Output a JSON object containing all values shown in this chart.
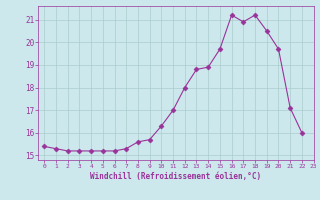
{
  "x": [
    0,
    1,
    2,
    3,
    4,
    5,
    6,
    7,
    8,
    9,
    10,
    11,
    12,
    13,
    14,
    15,
    16,
    17,
    18,
    19,
    20,
    21,
    22,
    23
  ],
  "y": [
    15.4,
    15.3,
    15.2,
    15.2,
    15.2,
    15.2,
    15.2,
    15.3,
    15.6,
    15.7,
    16.3,
    17.0,
    18.0,
    18.8,
    18.9,
    19.7,
    21.2,
    20.9,
    21.2,
    20.5,
    19.7,
    17.1,
    16.0,
    null
  ],
  "xlabel": "Windchill (Refroidissement éolien,°C)",
  "ylim": [
    14.8,
    21.6
  ],
  "xlim": [
    -0.5,
    23
  ],
  "yticks": [
    15,
    16,
    17,
    18,
    19,
    20,
    21
  ],
  "xtick_labels": [
    "0",
    "1",
    "2",
    "3",
    "4",
    "5",
    "6",
    "7",
    "8",
    "9",
    "10",
    "11",
    "12",
    "13",
    "14",
    "15",
    "16",
    "17",
    "18",
    "19",
    "20",
    "21",
    "22",
    "23"
  ],
  "line_color": "#993399",
  "marker": "D",
  "marker_size": 2.5,
  "bg_color": "#cce8ed",
  "grid_color": "#aacccc",
  "label_color": "#993399",
  "tick_color": "#993399",
  "font_family": "monospace"
}
